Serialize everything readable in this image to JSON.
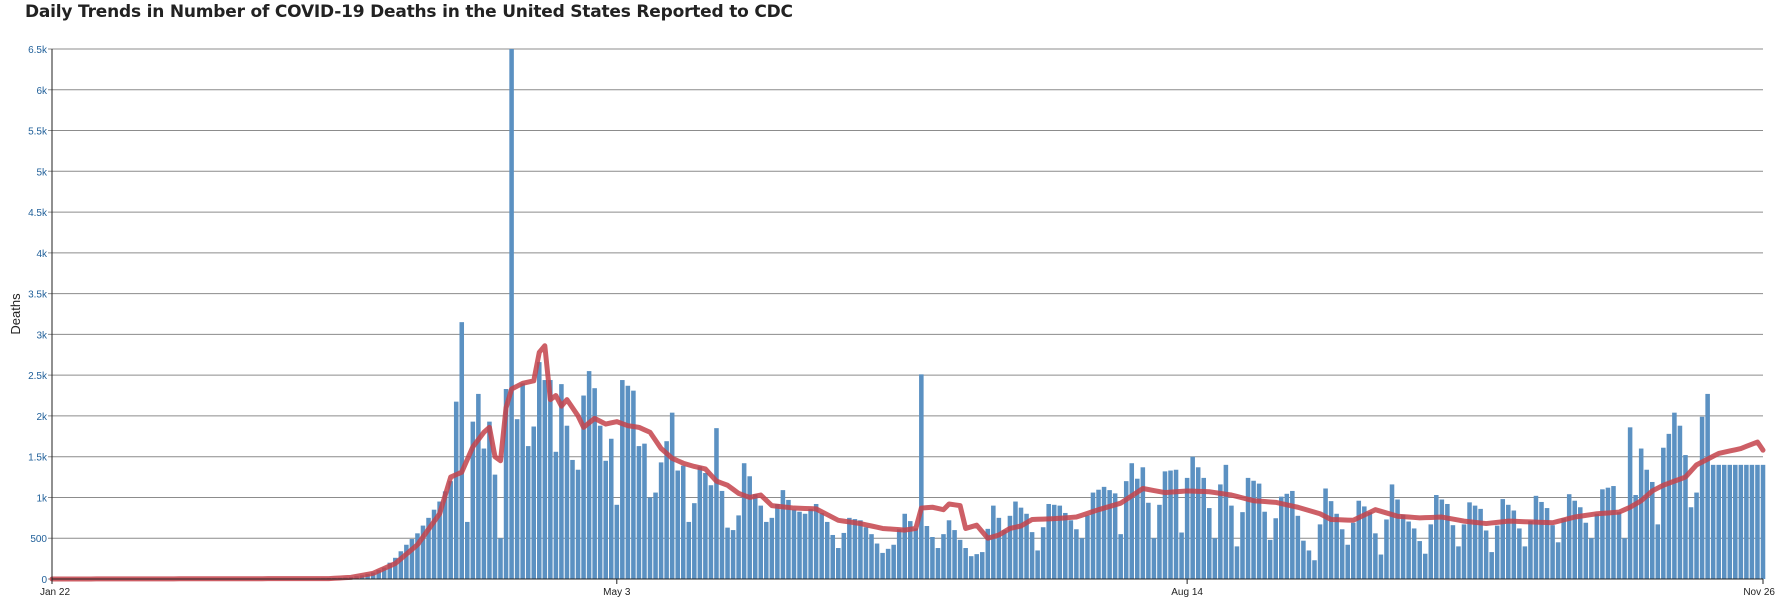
{
  "title": "Daily Trends in Number of COVID-19 Deaths in the United States Reported to CDC",
  "colors": {
    "bar": "#5b91c2",
    "line": "#c4434b",
    "grid": "#8c8c8c",
    "tick": "#1f5f99"
  },
  "chart_data": {
    "type": "bar",
    "title": "Daily Trends in Number of COVID-19 Deaths in the United States Reported to CDC",
    "xlabel": "",
    "ylabel": "Deaths",
    "ylim": [
      0,
      6500
    ],
    "yticks": [
      0,
      500,
      1000,
      1500,
      2000,
      2500,
      3000,
      3500,
      4000,
      4500,
      5000,
      5500,
      6000,
      6500
    ],
    "ytick_labels": [
      "0",
      "500",
      "1k",
      "1.5k",
      "2k",
      "2.5k",
      "3k",
      "3.5k",
      "4k",
      "4.5k",
      "5k",
      "5.5k",
      "6k",
      "6.5k"
    ],
    "x_ticks": [
      {
        "label": "Jan 22",
        "date": "2020-01-22"
      },
      {
        "label": "May 3",
        "date": "2020-05-03"
      },
      {
        "label": "Aug 14",
        "date": "2020-08-14"
      },
      {
        "label": "Nov 26",
        "date": "2020-11-26"
      }
    ],
    "x_start": "2020-01-22",
    "x_end": "2020-11-26",
    "grid": true,
    "legend": "none",
    "keypoints": {
      "bars": [
        [
          "2020-01-22",
          0
        ],
        [
          "2020-02-28",
          0
        ],
        [
          "2020-03-01",
          2
        ],
        [
          "2020-03-05",
          3
        ],
        [
          "2020-03-10",
          8
        ],
        [
          "2020-03-14",
          15
        ],
        [
          "2020-03-16",
          25
        ],
        [
          "2020-03-18",
          45
        ],
        [
          "2020-03-20",
          80
        ],
        [
          "2020-03-22",
          140
        ],
        [
          "2020-03-24",
          260
        ],
        [
          "2020-03-26",
          420
        ],
        [
          "2020-03-28",
          560
        ],
        [
          "2020-03-30",
          750
        ],
        [
          "2020-04-01",
          950
        ],
        [
          "2020-04-03",
          1200
        ],
        [
          "2020-04-05",
          3150
        ],
        [
          "2020-04-06",
          700
        ],
        [
          "2020-04-07",
          1930
        ],
        [
          "2020-04-08",
          2270
        ],
        [
          "2020-04-09",
          1600
        ],
        [
          "2020-04-10",
          1930
        ],
        [
          "2020-04-11",
          1280
        ],
        [
          "2020-04-12",
          500
        ],
        [
          "2020-04-13",
          2330
        ],
        [
          "2020-04-14",
          6500
        ],
        [
          "2020-04-15",
          1960
        ],
        [
          "2020-04-16",
          2400
        ],
        [
          "2020-04-17",
          1630
        ],
        [
          "2020-04-18",
          1870
        ],
        [
          "2020-04-19",
          2660
        ],
        [
          "2020-04-20",
          2440
        ],
        [
          "2020-04-21",
          2440
        ],
        [
          "2020-04-22",
          1560
        ],
        [
          "2020-04-23",
          2390
        ],
        [
          "2020-04-24",
          1880
        ],
        [
          "2020-04-25",
          1460
        ],
        [
          "2020-04-26",
          1340
        ],
        [
          "2020-04-27",
          2250
        ],
        [
          "2020-04-28",
          2550
        ],
        [
          "2020-04-29",
          2340
        ],
        [
          "2020-04-30",
          1880
        ],
        [
          "2020-05-01",
          1450
        ],
        [
          "2020-05-02",
          1720
        ],
        [
          "2020-05-03",
          910
        ],
        [
          "2020-05-04",
          2440
        ],
        [
          "2020-05-05",
          2370
        ],
        [
          "2020-05-06",
          2310
        ],
        [
          "2020-05-07",
          1630
        ],
        [
          "2020-05-08",
          1660
        ],
        [
          "2020-05-09",
          1000
        ],
        [
          "2020-05-10",
          1060
        ],
        [
          "2020-05-11",
          1430
        ],
        [
          "2020-05-12",
          1690
        ],
        [
          "2020-05-13",
          2040
        ],
        [
          "2020-05-14",
          1330
        ],
        [
          "2020-05-15",
          1390
        ],
        [
          "2020-05-16",
          700
        ],
        [
          "2020-05-17",
          930
        ],
        [
          "2020-05-18",
          1380
        ],
        [
          "2020-05-19",
          1300
        ],
        [
          "2020-05-20",
          1150
        ],
        [
          "2020-05-21",
          1850
        ],
        [
          "2020-05-22",
          1080
        ],
        [
          "2020-05-23",
          630
        ],
        [
          "2020-05-24",
          600
        ],
        [
          "2020-05-25",
          780
        ],
        [
          "2020-05-26",
          1420
        ],
        [
          "2020-05-27",
          1260
        ],
        [
          "2020-05-28",
          1040
        ],
        [
          "2020-05-29",
          900
        ],
        [
          "2020-05-30",
          700
        ],
        [
          "2020-05-31",
          750
        ],
        [
          "2020-06-02",
          1090
        ],
        [
          "2020-06-04",
          850
        ],
        [
          "2020-06-06",
          800
        ],
        [
          "2020-06-08",
          920
        ],
        [
          "2020-06-10",
          700
        ],
        [
          "2020-06-12",
          380
        ],
        [
          "2020-06-14",
          750
        ],
        [
          "2020-06-16",
          720
        ],
        [
          "2020-06-18",
          550
        ],
        [
          "2020-06-20",
          320
        ],
        [
          "2020-06-22",
          420
        ],
        [
          "2020-06-24",
          800
        ],
        [
          "2020-06-26",
          620
        ],
        [
          "2020-06-27",
          2510
        ],
        [
          "2020-06-28",
          650
        ],
        [
          "2020-06-30",
          380
        ],
        [
          "2020-07-02",
          720
        ],
        [
          "2020-07-04",
          480
        ],
        [
          "2020-07-06",
          280
        ],
        [
          "2020-07-08",
          330
        ],
        [
          "2020-07-10",
          900
        ],
        [
          "2020-07-12",
          600
        ],
        [
          "2020-07-14",
          950
        ],
        [
          "2020-07-16",
          800
        ],
        [
          "2020-07-18",
          350
        ],
        [
          "2020-07-20",
          920
        ],
        [
          "2020-07-22",
          900
        ],
        [
          "2020-07-24",
          720
        ],
        [
          "2020-07-26",
          500
        ],
        [
          "2020-07-28",
          1060
        ],
        [
          "2020-07-30",
          1130
        ],
        [
          "2020-08-01",
          1050
        ],
        [
          "2020-08-02",
          550
        ],
        [
          "2020-08-03",
          1200
        ],
        [
          "2020-08-04",
          1420
        ],
        [
          "2020-08-05",
          1230
        ],
        [
          "2020-08-06",
          1370
        ],
        [
          "2020-08-08",
          500
        ],
        [
          "2020-08-10",
          1320
        ],
        [
          "2020-08-12",
          1340
        ],
        [
          "2020-08-13",
          570
        ],
        [
          "2020-08-14",
          1240
        ],
        [
          "2020-08-15",
          1500
        ],
        [
          "2020-08-17",
          1240
        ],
        [
          "2020-08-19",
          500
        ],
        [
          "2020-08-20",
          1160
        ],
        [
          "2020-08-21",
          1400
        ],
        [
          "2020-08-23",
          400
        ],
        [
          "2020-08-25",
          1240
        ],
        [
          "2020-08-27",
          1170
        ],
        [
          "2020-08-29",
          480
        ],
        [
          "2020-08-31",
          1010
        ],
        [
          "2020-09-02",
          1080
        ],
        [
          "2020-09-04",
          470
        ],
        [
          "2020-09-06",
          230
        ],
        [
          "2020-09-08",
          1110
        ],
        [
          "2020-09-10",
          800
        ],
        [
          "2020-09-12",
          420
        ],
        [
          "2020-09-14",
          960
        ],
        [
          "2020-09-16",
          820
        ],
        [
          "2020-09-18",
          300
        ],
        [
          "2020-09-20",
          1160
        ],
        [
          "2020-09-22",
          790
        ],
        [
          "2020-09-24",
          620
        ],
        [
          "2020-09-26",
          310
        ],
        [
          "2020-09-28",
          1030
        ],
        [
          "2020-09-30",
          920
        ],
        [
          "2020-10-02",
          400
        ],
        [
          "2020-10-04",
          940
        ],
        [
          "2020-10-06",
          860
        ],
        [
          "2020-10-08",
          330
        ],
        [
          "2020-10-10",
          980
        ],
        [
          "2020-10-12",
          840
        ],
        [
          "2020-10-14",
          400
        ],
        [
          "2020-10-16",
          1020
        ],
        [
          "2020-10-18",
          870
        ],
        [
          "2020-10-20",
          450
        ],
        [
          "2020-10-22",
          1040
        ],
        [
          "2020-10-24",
          880
        ],
        [
          "2020-10-26",
          500
        ],
        [
          "2020-10-28",
          1100
        ],
        [
          "2020-10-30",
          1140
        ],
        [
          "2020-11-01",
          500
        ],
        [
          "2020-11-02",
          1860
        ],
        [
          "2020-11-03",
          1030
        ],
        [
          "2020-11-04",
          1600
        ],
        [
          "2020-11-05",
          1340
        ],
        [
          "2020-11-06",
          1190
        ],
        [
          "2020-11-07",
          670
        ],
        [
          "2020-11-08",
          1610
        ],
        [
          "2020-11-09",
          1780
        ],
        [
          "2020-11-10",
          2040
        ],
        [
          "2020-11-11",
          1880
        ],
        [
          "2020-11-12",
          1520
        ],
        [
          "2020-11-13",
          880
        ],
        [
          "2020-11-14",
          1060
        ],
        [
          "2020-11-15",
          1990
        ],
        [
          "2020-11-16",
          2270
        ],
        [
          "2020-11-17",
          1400
        ],
        [
          "2020-11-26",
          1400
        ]
      ],
      "avg": [
        [
          "2020-01-22",
          0
        ],
        [
          "2020-03-12",
          5
        ],
        [
          "2020-03-16",
          20
        ],
        [
          "2020-03-20",
          70
        ],
        [
          "2020-03-24",
          190
        ],
        [
          "2020-03-28",
          420
        ],
        [
          "2020-04-01",
          800
        ],
        [
          "2020-04-03",
          1250
        ],
        [
          "2020-04-05",
          1310
        ],
        [
          "2020-04-07",
          1620
        ],
        [
          "2020-04-09",
          1800
        ],
        [
          "2020-04-10",
          1860
        ],
        [
          "2020-04-11",
          1500
        ],
        [
          "2020-04-12",
          1450
        ],
        [
          "2020-04-13",
          2100
        ],
        [
          "2020-04-14",
          2330
        ],
        [
          "2020-04-16",
          2400
        ],
        [
          "2020-04-18",
          2430
        ],
        [
          "2020-04-19",
          2780
        ],
        [
          "2020-04-20",
          2860
        ],
        [
          "2020-04-21",
          2200
        ],
        [
          "2020-04-22",
          2250
        ],
        [
          "2020-04-23",
          2120
        ],
        [
          "2020-04-24",
          2200
        ],
        [
          "2020-04-26",
          2000
        ],
        [
          "2020-04-27",
          1860
        ],
        [
          "2020-04-29",
          1970
        ],
        [
          "2020-05-01",
          1900
        ],
        [
          "2020-05-03",
          1930
        ],
        [
          "2020-05-05",
          1880
        ],
        [
          "2020-05-07",
          1860
        ],
        [
          "2020-05-09",
          1800
        ],
        [
          "2020-05-11",
          1600
        ],
        [
          "2020-05-13",
          1480
        ],
        [
          "2020-05-15",
          1420
        ],
        [
          "2020-05-17",
          1380
        ],
        [
          "2020-05-19",
          1350
        ],
        [
          "2020-05-21",
          1200
        ],
        [
          "2020-05-23",
          1150
        ],
        [
          "2020-05-25",
          1050
        ],
        [
          "2020-05-27",
          1000
        ],
        [
          "2020-05-29",
          1030
        ],
        [
          "2020-05-31",
          900
        ],
        [
          "2020-06-04",
          870
        ],
        [
          "2020-06-08",
          860
        ],
        [
          "2020-06-12",
          720
        ],
        [
          "2020-06-16",
          680
        ],
        [
          "2020-06-20",
          620
        ],
        [
          "2020-06-24",
          600
        ],
        [
          "2020-06-26",
          620
        ],
        [
          "2020-06-27",
          870
        ],
        [
          "2020-06-29",
          880
        ],
        [
          "2020-07-01",
          850
        ],
        [
          "2020-07-02",
          920
        ],
        [
          "2020-07-04",
          900
        ],
        [
          "2020-07-05",
          620
        ],
        [
          "2020-07-07",
          660
        ],
        [
          "2020-07-09",
          500
        ],
        [
          "2020-07-11",
          540
        ],
        [
          "2020-07-13",
          620
        ],
        [
          "2020-07-15",
          650
        ],
        [
          "2020-07-17",
          730
        ],
        [
          "2020-07-21",
          740
        ],
        [
          "2020-07-25",
          760
        ],
        [
          "2020-07-29",
          850
        ],
        [
          "2020-08-02",
          930
        ],
        [
          "2020-08-06",
          1110
        ],
        [
          "2020-08-10",
          1060
        ],
        [
          "2020-08-14",
          1080
        ],
        [
          "2020-08-18",
          1070
        ],
        [
          "2020-08-22",
          1030
        ],
        [
          "2020-08-26",
          960
        ],
        [
          "2020-08-30",
          940
        ],
        [
          "2020-09-03",
          880
        ],
        [
          "2020-09-07",
          800
        ],
        [
          "2020-09-09",
          730
        ],
        [
          "2020-09-13",
          720
        ],
        [
          "2020-09-17",
          850
        ],
        [
          "2020-09-21",
          770
        ],
        [
          "2020-09-25",
          750
        ],
        [
          "2020-09-29",
          760
        ],
        [
          "2020-10-03",
          710
        ],
        [
          "2020-10-07",
          680
        ],
        [
          "2020-10-11",
          710
        ],
        [
          "2020-10-15",
          700
        ],
        [
          "2020-10-19",
          690
        ],
        [
          "2020-10-23",
          760
        ],
        [
          "2020-10-27",
          800
        ],
        [
          "2020-10-31",
          820
        ],
        [
          "2020-11-02",
          880
        ],
        [
          "2020-11-04",
          960
        ],
        [
          "2020-11-06",
          1080
        ],
        [
          "2020-11-08",
          1150
        ],
        [
          "2020-11-10",
          1200
        ],
        [
          "2020-11-12",
          1250
        ],
        [
          "2020-11-14",
          1400
        ],
        [
          "2020-11-18",
          1540
        ],
        [
          "2020-11-22",
          1600
        ],
        [
          "2020-11-25",
          1680
        ],
        [
          "2020-11-26",
          1580
        ]
      ]
    }
  }
}
